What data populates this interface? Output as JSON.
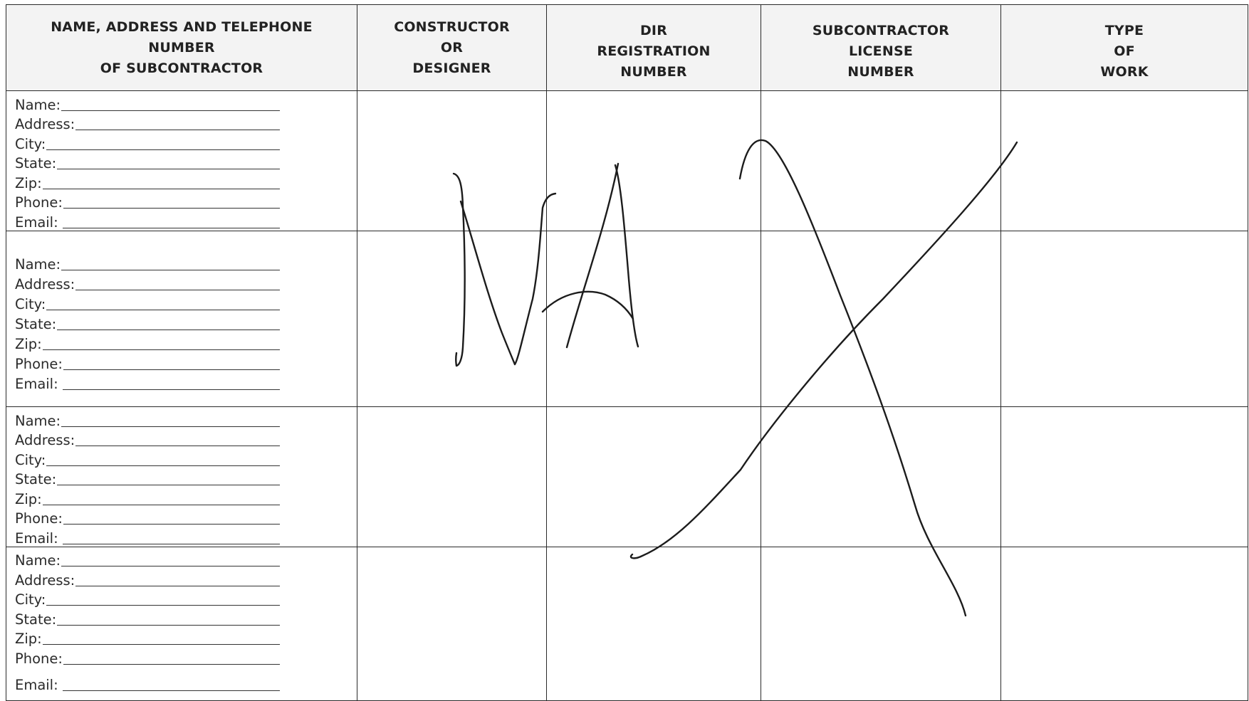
{
  "headers": [
    {
      "line1": "NAME, ADDRESS AND TELEPHONE NUMBER",
      "line2": "OF SUBCONTRACTOR"
    },
    {
      "line1": "CONSTRUCTOR OR",
      "line2": "DESIGNER"
    },
    {
      "line1": "DIR REGISTRATION",
      "line2": "NUMBER"
    },
    {
      "line1": "SUBCONTRACTOR LICENSE",
      "line2": "NUMBER"
    },
    {
      "line1": "TYPE OF",
      "line2": "WORK"
    }
  ],
  "field_labels": {
    "name": "Name:",
    "address": "Address:",
    "city": "City:",
    "state": "State:",
    "zip": "Zip:",
    "phone": "Phone:",
    "email": "Email:"
  },
  "entries": [
    {
      "name": "",
      "address": "",
      "city": "",
      "state": "",
      "zip": "",
      "phone": "",
      "email": "",
      "constructor_or_designer": "",
      "dir_registration_number": "",
      "subcontractor_license_number": "",
      "type_of_work": ""
    },
    {
      "name": "",
      "address": "",
      "city": "",
      "state": "",
      "zip": "",
      "phone": "",
      "email": "",
      "constructor_or_designer": "",
      "dir_registration_number": "",
      "subcontractor_license_number": "",
      "type_of_work": ""
    },
    {
      "name": "",
      "address": "",
      "city": "",
      "state": "",
      "zip": "",
      "phone": "",
      "email": "",
      "constructor_or_designer": "",
      "dir_registration_number": "",
      "subcontractor_license_number": "",
      "type_of_work": ""
    },
    {
      "name": "",
      "address": "",
      "city": "",
      "state": "",
      "zip": "",
      "phone": "",
      "email": "",
      "constructor_or_designer": "",
      "dir_registration_number": "",
      "subcontractor_license_number": "",
      "type_of_work": ""
    }
  ],
  "handwritten_annotation": {
    "text": "NA",
    "strike_mark": "X",
    "ink_color": "#1c1c1c"
  }
}
